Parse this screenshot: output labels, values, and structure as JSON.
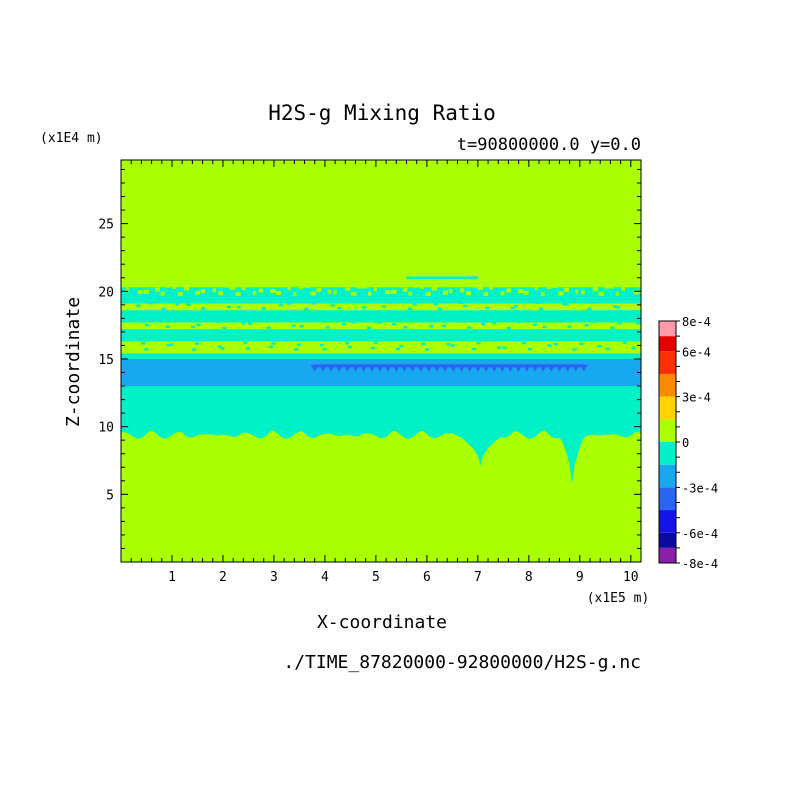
{
  "chart_data": {
    "type": "heatmap",
    "title": "H2S-g Mixing Ratio",
    "subtitle": "t=90800000.0 y=0.0",
    "xlabel": "X-coordinate",
    "ylabel": "Z-coordinate",
    "x_unit": "(x1E5 m)",
    "y_unit": "(x1E4 m)",
    "footer": "./TIME_87820000-92800000/H2S-g.nc",
    "xlim": [
      0,
      10.2
    ],
    "ylim": [
      0,
      29.7
    ],
    "x_ticks": [
      "1",
      "2",
      "3",
      "4",
      "5",
      "6",
      "7",
      "8",
      "9",
      "10"
    ],
    "y_ticks": [
      "5",
      "10",
      "15",
      "20",
      "25"
    ],
    "colorbar": {
      "levels": [
        -0.0008,
        -0.0007,
        -0.0006,
        -0.0005,
        -0.0004,
        -0.0003,
        -0.0002,
        -0.0001,
        0,
        0.0001,
        0.0002,
        0.0003,
        0.0004,
        0.0005,
        0.0006,
        0.0007,
        0.0008
      ],
      "colors": [
        "#8b1fa8",
        "#0b0ba0",
        "#1414e6",
        "#2a64f0",
        "#18a8f0",
        "#00f0c8",
        "#aaff00",
        "#ffd400",
        "#ff8c00",
        "#ff3000",
        "#e60000",
        "#ff9aaa"
      ],
      "band_bounds": [
        -0.0008,
        -0.0007,
        -0.0006,
        -0.00045,
        -0.0003,
        -0.00015,
        0,
        0.00015,
        0.0003,
        0.00045,
        0.0006,
        0.0007,
        0.0008
      ],
      "tick_labels": [
        "8e-4",
        "6e-4",
        "3e-4",
        "0",
        "-3e-4",
        "-6e-4",
        "-8e-4"
      ],
      "tick_values": [
        0.0008,
        0.0006,
        0.0003,
        0,
        -0.0003,
        -0.0006,
        -0.0008
      ]
    },
    "fields": {
      "background_value": 5e-05,
      "regions": [
        {
          "name": "lower-negative-layer",
          "value": -5e-05,
          "z_range": [
            9.6,
            20.3
          ]
        },
        {
          "name": "band-15-13",
          "value": -0.0002,
          "z_range": [
            13.0,
            15.0
          ]
        },
        {
          "name": "min-core",
          "value": -0.00035,
          "x_range": [
            3.8,
            9.1
          ],
          "z_range": [
            14.1,
            14.6
          ]
        },
        {
          "name": "positive-stripe-1",
          "value": 5e-05,
          "z_range": [
            18.6,
            19.1
          ]
        },
        {
          "name": "positive-stripe-2",
          "value": 5e-05,
          "z_range": [
            17.2,
            17.7
          ]
        },
        {
          "name": "positive-stripe-3",
          "value": 5e-05,
          "z_range": [
            15.4,
            16.3
          ]
        },
        {
          "name": "dip-1",
          "x_center": 7.05,
          "z_bottom": 7.1
        },
        {
          "name": "dip-2",
          "x_center": 8.85,
          "z_bottom": 5.8
        }
      ]
    }
  }
}
